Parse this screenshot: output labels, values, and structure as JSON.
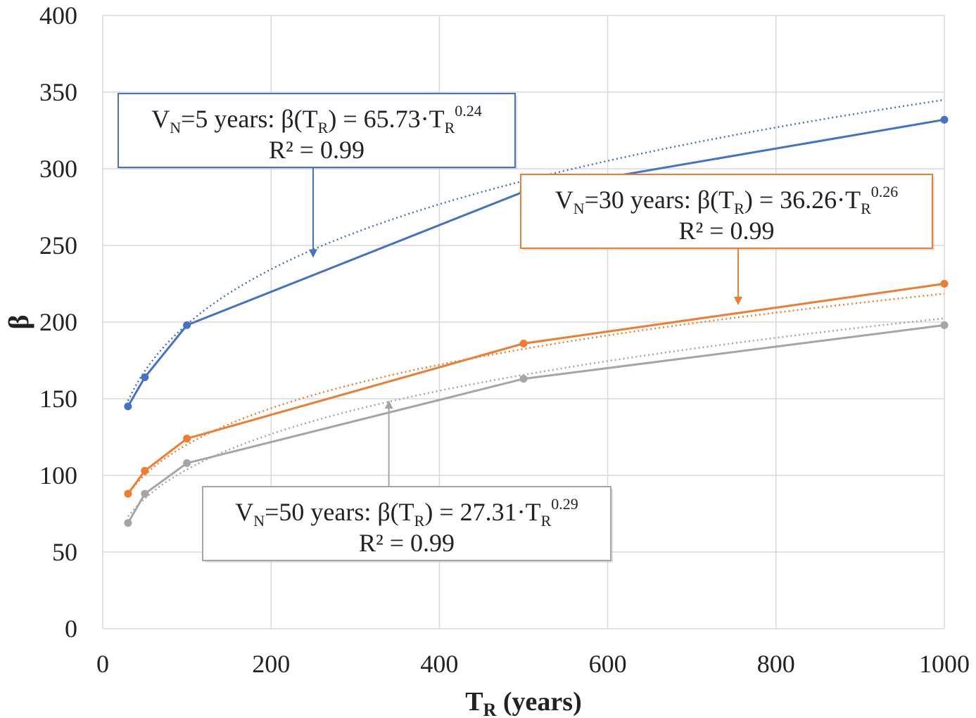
{
  "chart_data": {
    "type": "line",
    "xlabel_main": "T",
    "xlabel_sub": "R",
    "xlabel_rest": " (years)",
    "ylabel": "β",
    "xlim": [
      0,
      1000
    ],
    "ylim": [
      0,
      400
    ],
    "xticks": [
      0,
      200,
      400,
      600,
      800,
      1000
    ],
    "yticks": [
      0,
      50,
      100,
      150,
      200,
      250,
      300,
      350,
      400
    ],
    "grid": true,
    "x": [
      30,
      50,
      100,
      500,
      1000
    ],
    "series": [
      {
        "key": "vn5",
        "color": "#4472c4",
        "values": [
          145,
          164,
          198,
          285,
          332
        ],
        "fit": {
          "a": 65.73,
          "b": 0.24
        }
      },
      {
        "key": "vn30",
        "color": "#ed7d31",
        "values": [
          88,
          103,
          124,
          186,
          225
        ],
        "fit": {
          "a": 36.26,
          "b": 0.26
        }
      },
      {
        "key": "vn50",
        "color": "#a5a5a5",
        "values": [
          69,
          88,
          108,
          163,
          198
        ],
        "fit": {
          "a": 27.31,
          "b": 0.29
        }
      }
    ],
    "annotations": [
      {
        "key": "vn5",
        "color": "#4472c4",
        "v": "V",
        "vsub": "N",
        "eq_start": "=5 years: β(T",
        "eq_sub": "R",
        "eq_mid": ") = 65.73·T",
        "eq_sub2": "R",
        "eq_sup": "0.24",
        "r2": "R² = 0.99",
        "arrow_to": [
          250,
          242
        ]
      },
      {
        "key": "vn30",
        "color": "#ed7d31",
        "v": "V",
        "vsub": "N",
        "eq_start": "=30 years: β(T",
        "eq_sub": "R",
        "eq_mid": ") = 36.26·T",
        "eq_sub2": "R",
        "eq_sup": "0.26",
        "r2": "R² = 0.99",
        "arrow_to": [
          755,
          211
        ]
      },
      {
        "key": "vn50",
        "color": "#a5a5a5",
        "v": "V",
        "vsub": "N",
        "eq_start": "=50 years: β(T",
        "eq_sub": "R",
        "eq_mid": ") = 27.31·T",
        "eq_sub2": "R",
        "eq_sup": "0.29",
        "r2": "R² = 0.99",
        "arrow_to": [
          340,
          149
        ]
      }
    ]
  }
}
